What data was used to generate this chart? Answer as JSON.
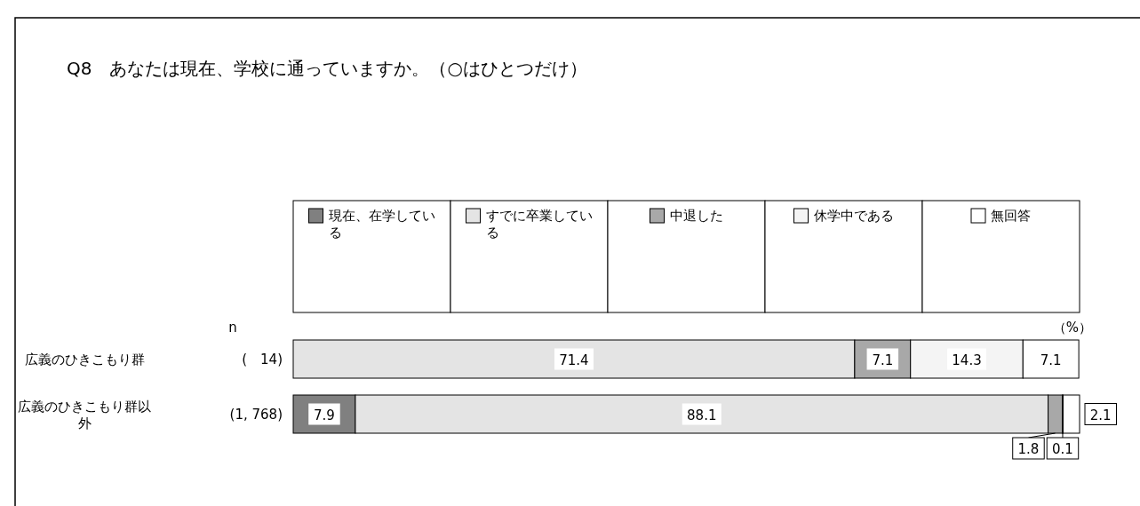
{
  "chart_data": {
    "type": "bar",
    "orientation": "horizontal",
    "stacked": true,
    "title": "Q8　あなたは現在、学校に通っていますか。（○はひとつだけ）",
    "categories": [
      "広義のひきこもり群",
      "広義のひきこもり群以外"
    ],
    "xlim": [
      0,
      100
    ],
    "legend": "top",
    "annotations": [
      "n",
      "（%）",
      "(　14)",
      "(1, 768)"
    ],
    "series": [
      {
        "name": "現在、在学している",
        "color": "#808080",
        "values": [
          0,
          7.9
        ],
        "value_labels": [
          null,
          "7.9"
        ]
      },
      {
        "name": "すでに卒業している",
        "color": "#e4e4e4",
        "values": [
          71.4,
          88.1
        ],
        "value_labels": [
          "71.4",
          "88.1"
        ]
      },
      {
        "name": "中退した",
        "color": "#a8a8a8",
        "values": [
          7.1,
          1.8
        ],
        "value_labels": [
          "7.1",
          "1.8"
        ]
      },
      {
        "name": "休学中である",
        "color": "#f4f4f4",
        "values": [
          14.3,
          0.1
        ],
        "value_labels": [
          "14.3",
          "0.1"
        ]
      },
      {
        "name": "無回答",
        "color": "#ffffff",
        "values": [
          7.1,
          2.1
        ],
        "value_labels": [
          "7.1",
          "2.1"
        ]
      }
    ]
  }
}
